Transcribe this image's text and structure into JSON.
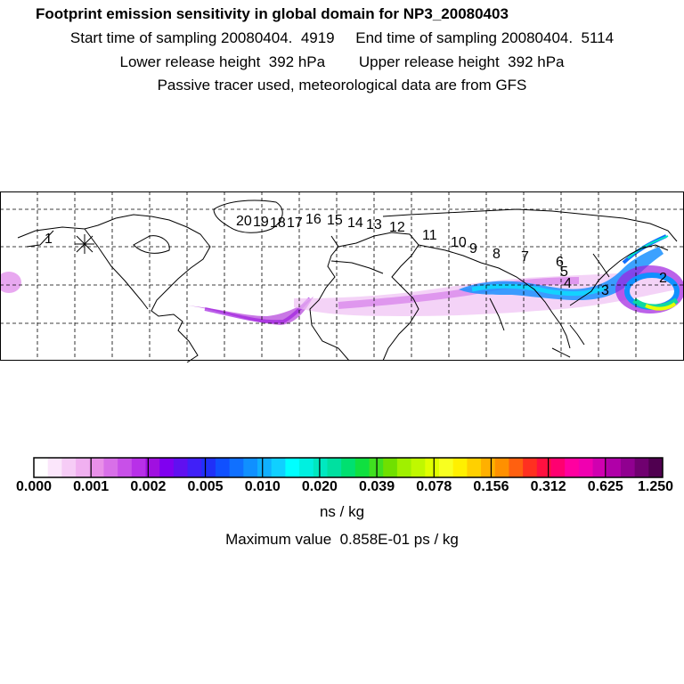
{
  "header": {
    "title": "Footprint emission sensitivity in global domain for NP3_20080403",
    "line2": "Start time of sampling 20080404.  4919     End time of sampling 20080404.  5114",
    "line3": "Lower release height  392 hPa        Upper release height  392 hPa",
    "line4": "Passive tracer used, meteorological data are from GFS"
  },
  "map": {
    "trajectory_labels": [
      "1",
      "2",
      "3",
      "4",
      "5",
      "6",
      "7",
      "8",
      "9",
      "10",
      "11",
      "12",
      "13",
      "14",
      "15",
      "16",
      "17",
      "18",
      "19",
      "20"
    ],
    "colors": {
      "land_outline": "#000000",
      "grid": "#000000",
      "plume_low": "#e8a0f0",
      "plume_mid": "#1ab0ff",
      "plume_high": "#ffff00"
    }
  },
  "colorbar": {
    "ticks": [
      "0.000",
      "0.001",
      "0.002",
      "0.005",
      "0.010",
      "0.020",
      "0.039",
      "0.078",
      "0.156",
      "0.312",
      "0.625",
      "1.250"
    ],
    "colors": [
      "#ffffff",
      "#fbe6fb",
      "#f6ccf6",
      "#f0b0f0",
      "#e890e8",
      "#d870e8",
      "#c850e8",
      "#b830e8",
      "#a010e0",
      "#8000f0",
      "#6010f0",
      "#4020f8",
      "#2030f8",
      "#1050ff",
      "#1070ff",
      "#1090ff",
      "#10b0ff",
      "#10d0ff",
      "#00ffff",
      "#00f0e0",
      "#00e8c0",
      "#00e0a0",
      "#00e070",
      "#10e040",
      "#40e020",
      "#70e000",
      "#a0f000",
      "#c0f800",
      "#e0ff00",
      "#f8ff20",
      "#fff000",
      "#ffd000",
      "#ffb000",
      "#ff9000",
      "#ff6010",
      "#ff3020",
      "#ff1040",
      "#ff0070",
      "#ff00a0",
      "#f000b0",
      "#d000b0",
      "#b000a8",
      "#900090",
      "#700070",
      "#500050"
    ],
    "units": "ns / kg",
    "max_value": "Maximum value  0.858E-01 ps / kg"
  }
}
